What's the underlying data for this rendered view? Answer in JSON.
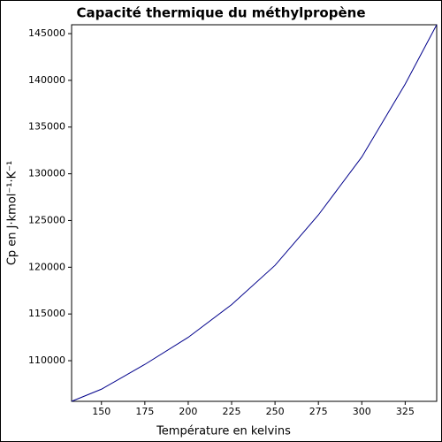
{
  "chart_data": {
    "type": "line",
    "title": "Capacité thermique du méthylpropène",
    "x_label": "Température en kelvins",
    "y_label": "Cp en J·kmol⁻¹·K⁻¹",
    "x": [
      132.81,
      150,
      175,
      200,
      225,
      250,
      275,
      300,
      325,
      343.15
    ],
    "series": [
      {
        "name": "Cp",
        "color": "#00008b",
        "values": [
          105650,
          106950,
          109600,
          112500,
          116000,
          120200,
          125600,
          131800,
          139600,
          145950
        ]
      }
    ],
    "xlim": [
      132.81,
      343.15
    ],
    "xticks": [
      150,
      175,
      200,
      225,
      250,
      275,
      300,
      325
    ],
    "ylim": [
      105650,
      145950
    ],
    "yticks": [
      110000,
      115000,
      120000,
      125000,
      130000,
      135000,
      140000,
      145000
    ]
  }
}
